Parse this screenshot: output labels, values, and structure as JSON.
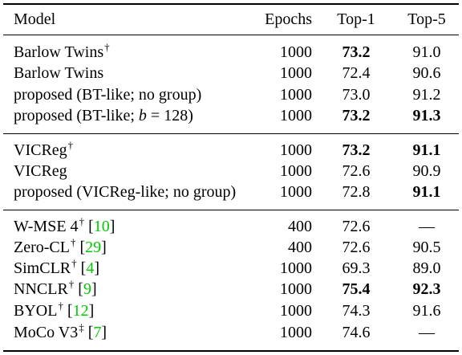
{
  "header": {
    "model": "Model",
    "epochs": "Epochs",
    "top1": "Top-1",
    "top5": "Top-5"
  },
  "rows": [
    {
      "pre": "Barlow Twins",
      "sup": "†",
      "ref": "",
      "post": "",
      "epochs": "1000",
      "top1": "73.2",
      "top5": "91.0",
      "top1_bold": true,
      "top5_bold": false
    },
    {
      "pre": "Barlow Twins",
      "sup": "",
      "ref": "",
      "post": "",
      "epochs": "1000",
      "top1": "72.4",
      "top5": "90.6",
      "top1_bold": false,
      "top5_bold": false
    },
    {
      "pre": "proposed (BT-like; no group)",
      "sup": "",
      "ref": "",
      "post": "",
      "epochs": "1000",
      "top1": "73.0",
      "top5": "91.2",
      "top1_bold": false,
      "top5_bold": false
    },
    {
      "pre": "proposed (BT-like; ",
      "var": "b",
      "eq": " = 128)",
      "sup": "",
      "ref": "",
      "post": "",
      "epochs": "1000",
      "top1": "73.2",
      "top5": "91.3",
      "top1_bold": true,
      "top5_bold": true
    },
    {
      "pre": "VICReg",
      "sup": "†",
      "ref": "",
      "post": "",
      "epochs": "1000",
      "top1": "73.2",
      "top5": "91.1",
      "top1_bold": true,
      "top5_bold": true
    },
    {
      "pre": "VICReg",
      "sup": "",
      "ref": "",
      "post": "",
      "epochs": "1000",
      "top1": "72.6",
      "top5": "90.9",
      "top1_bold": false,
      "top5_bold": false
    },
    {
      "pre": "proposed (VICReg-like; no group)",
      "sup": "",
      "ref": "",
      "post": "",
      "epochs": "1000",
      "top1": "72.8",
      "top5": "91.1",
      "top1_bold": false,
      "top5_bold": true
    },
    {
      "pre": "W-MSE 4",
      "sup": "†",
      "ref": "10",
      "post": "",
      "epochs": "400",
      "top1": "72.6",
      "top5": "—",
      "top1_bold": false,
      "top5_bold": false
    },
    {
      "pre": "Zero-CL",
      "sup": "†",
      "ref": "29",
      "post": "",
      "epochs": "400",
      "top1": "72.6",
      "top5": "90.5",
      "top1_bold": false,
      "top5_bold": false
    },
    {
      "pre": "SimCLR",
      "sup": "†",
      "ref": "4",
      "post": "",
      "epochs": "1000",
      "top1": "69.3",
      "top5": "89.0",
      "top1_bold": false,
      "top5_bold": false
    },
    {
      "pre": "NNCLR",
      "sup": "†",
      "ref": "9",
      "post": "",
      "epochs": "1000",
      "top1": "75.4",
      "top5": "92.3",
      "top1_bold": true,
      "top5_bold": true
    },
    {
      "pre": "BYOL",
      "sup": "†",
      "ref": "12",
      "post": "",
      "epochs": "1000",
      "top1": "74.3",
      "top5": "91.6",
      "top1_bold": false,
      "top5_bold": false
    },
    {
      "pre": "MoCo V3",
      "sup": "‡",
      "ref": "7",
      "post": "",
      "epochs": "1000",
      "top1": "74.6",
      "top5": "—",
      "top1_bold": false,
      "top5_bold": false
    }
  ]
}
